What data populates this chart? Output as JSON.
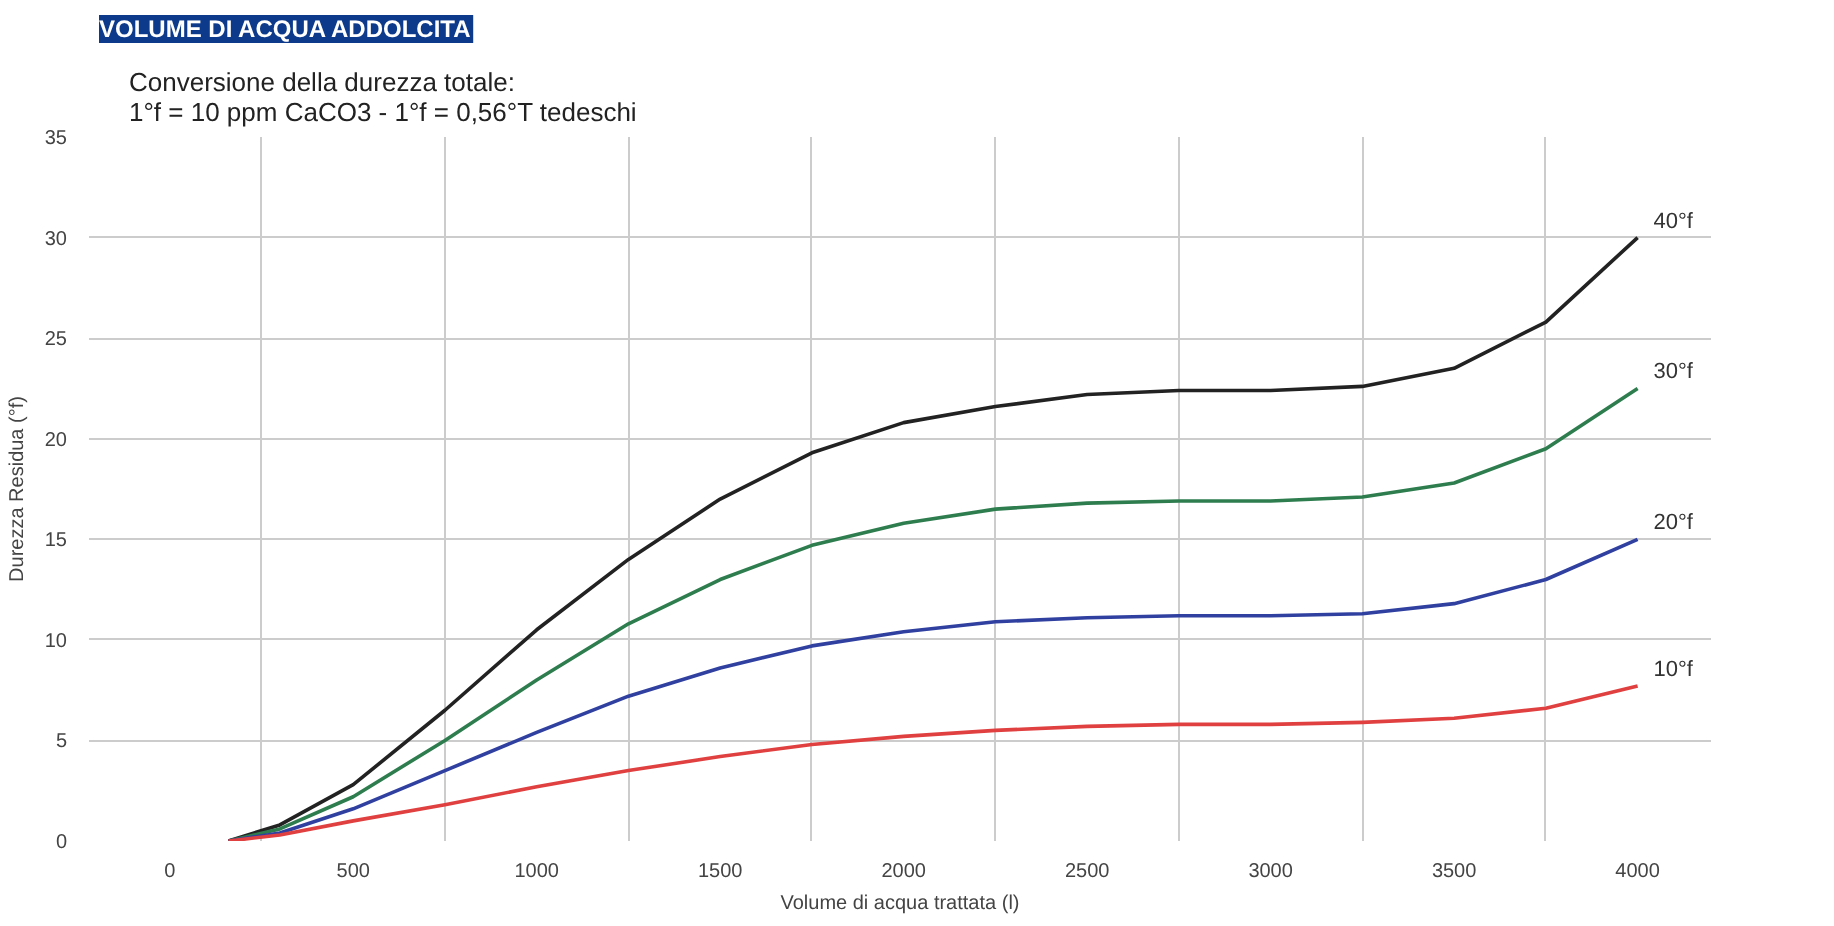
{
  "chart_data": {
    "type": "line",
    "title": "VOLUME DI ACQUA ADDOLCITA",
    "subtitle": "Conversione della durezza totale:\n1°f = 10 ppm CaCO3 - 1°f = 0,56°T tedeschi",
    "xlabel": "Volume di acqua trattata (l)",
    "ylabel": "Durezza Residua (°f)",
    "x": [
      160,
      300,
      500,
      750,
      1000,
      1250,
      1500,
      1750,
      2000,
      2250,
      2500,
      2750,
      3000,
      3250,
      3500,
      3750,
      4000
    ],
    "series": [
      {
        "name": "40°f",
        "color": "#222222",
        "values": [
          0,
          0.8,
          2.8,
          6.5,
          10.5,
          14,
          17,
          19.3,
          20.8,
          21.6,
          22.2,
          22.4,
          22.4,
          22.6,
          23.5,
          25.8,
          30
        ]
      },
      {
        "name": "30°f",
        "color": "#2e7d4f",
        "values": [
          0,
          0.6,
          2.2,
          5,
          8,
          10.8,
          13,
          14.7,
          15.8,
          16.5,
          16.8,
          16.9,
          16.9,
          17.1,
          17.8,
          19.5,
          22.5
        ]
      },
      {
        "name": "20°f",
        "color": "#3040a0",
        "values": [
          0,
          0.4,
          1.6,
          3.5,
          5.4,
          7.2,
          8.6,
          9.7,
          10.4,
          10.9,
          11.1,
          11.2,
          11.2,
          11.3,
          11.8,
          13,
          15
        ]
      },
      {
        "name": "10°f",
        "color": "#e04040",
        "values": [
          0,
          0.3,
          1,
          1.8,
          2.7,
          3.5,
          4.2,
          4.8,
          5.2,
          5.5,
          5.7,
          5.8,
          5.8,
          5.9,
          6.1,
          6.6,
          7.7
        ]
      }
    ],
    "xlim": [
      -220,
      4200
    ],
    "ylim": [
      0,
      35
    ],
    "xticks": [
      0,
      {
        "value": 250,
        "label": null
      },
      500,
      {
        "value": 750,
        "label": null
      },
      1000,
      {
        "value": 1250,
        "label": null
      },
      1500,
      {
        "value": 1750,
        "label": null
      },
      2000,
      {
        "value": 2250,
        "label": null
      },
      2500,
      {
        "value": 2750,
        "label": null
      },
      3000,
      {
        "value": 3250,
        "label": null
      },
      3500,
      {
        "value": 3750,
        "label": null
      },
      4000
    ],
    "yticks": [
      0,
      5,
      10,
      15,
      20,
      25,
      30,
      35
    ],
    "grid": true,
    "legend": false,
    "marker": "none",
    "line_style": "solid"
  }
}
